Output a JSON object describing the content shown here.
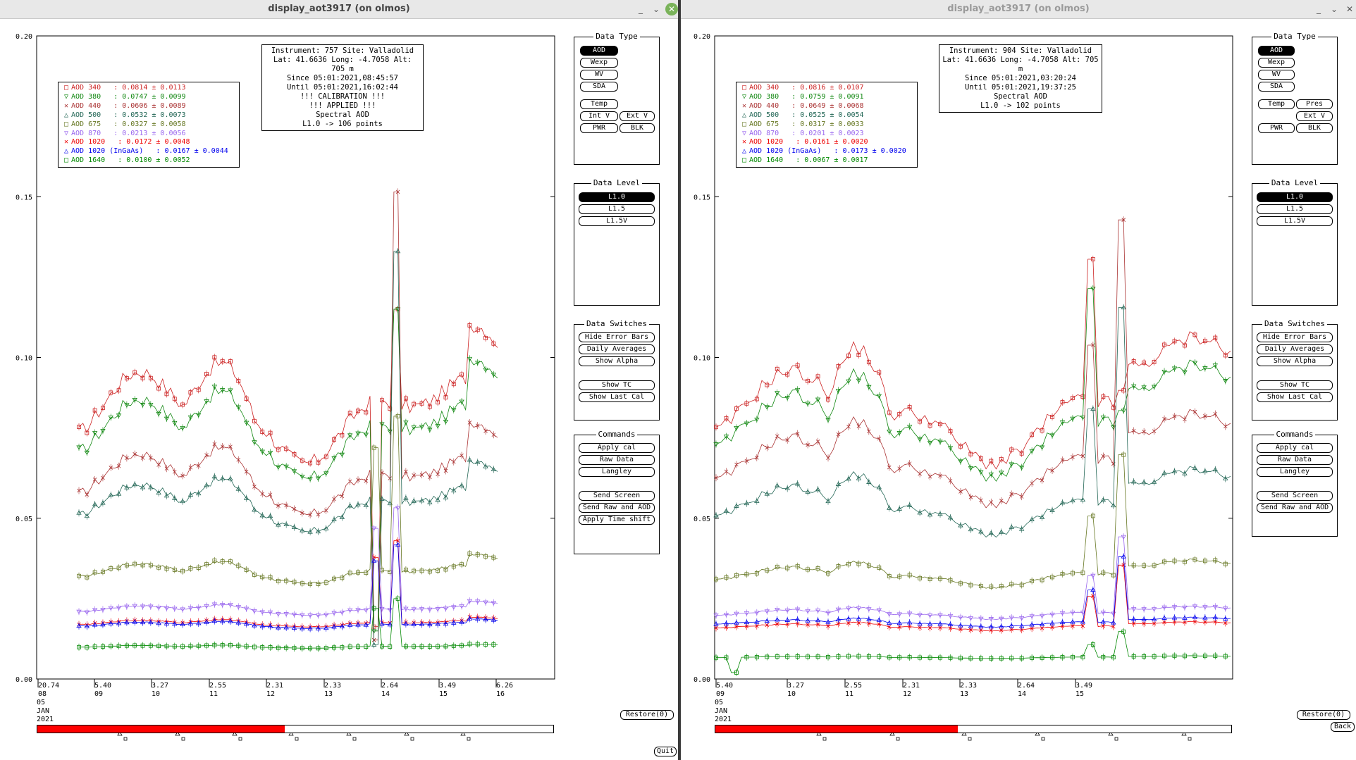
{
  "windows": [
    {
      "id": "left",
      "title": "display_aot3917 (on olmos)",
      "ylim": [
        0.0,
        0.2
      ],
      "yticks": [
        "0.00",
        "0.05",
        "0.10",
        "0.15",
        "0.20"
      ],
      "xticks": [
        {
          "v": "20.74",
          "d": "08"
        },
        {
          "v": "5.40",
          "d": "09"
        },
        {
          "v": "3.27",
          "d": "10"
        },
        {
          "v": "2.55",
          "d": "11"
        },
        {
          "v": "2.31",
          "d": "12"
        },
        {
          "v": "2.33",
          "d": "13"
        },
        {
          "v": "2.64",
          "d": "14"
        },
        {
          "v": "3.49",
          "d": "15"
        },
        {
          "v": "6.26",
          "d": "16"
        }
      ],
      "xdate": [
        "05",
        "JAN",
        "2021"
      ],
      "info": [
        "Instrument: 757 Site: Valladolid",
        "Lat: 41.6636 Long: -4.7058 Alt: 705 m",
        "Since 05:01:2021,08:45:57",
        "Until 05:01:2021,16:02:44",
        "!!! CALIBRATION !!!",
        "!!!   APPLIED   !!!",
        "Spectral AOD",
        "L1.0 -> 106 points"
      ],
      "legend": [
        {
          "icon": "□",
          "text": "AOD 340   : 0.0814 ± 0.0113",
          "color": "#cc2222"
        },
        {
          "icon": "▽",
          "text": "AOD 380   : 0.0747 ± 0.0099",
          "color": "#118811"
        },
        {
          "icon": "✕",
          "text": "AOD 440   : 0.0606 ± 0.0089",
          "color": "#aa3333"
        },
        {
          "icon": "△",
          "text": "AOD 500   : 0.0532 ± 0.0073",
          "color": "#226655"
        },
        {
          "icon": "□",
          "text": "AOD 675   : 0.0327 ± 0.0058",
          "color": "#667722"
        },
        {
          "icon": "▽",
          "text": "AOD 870   : 0.0213 ± 0.0056",
          "color": "#9966ee"
        },
        {
          "icon": "✕",
          "text": "AOD 1020   : 0.0172 ± 0.0048",
          "color": "#ee0000"
        },
        {
          "icon": "△",
          "text": "AOD 1020 (InGaAs)   : 0.0167 ± 0.0044",
          "color": "#0000ee"
        },
        {
          "icon": "□",
          "text": "AOD 1640   : 0.0100 ± 0.0052",
          "color": "#008800"
        }
      ],
      "progress": 0.48,
      "extra_pres": false,
      "apply_time_shift": true
    },
    {
      "id": "right",
      "title": "display_aot3917 (on olmos)",
      "ylim": [
        0.0,
        0.2
      ],
      "yticks": [
        "0.00",
        "0.05",
        "0.10",
        "0.15",
        "0.20"
      ],
      "xticks": [
        {
          "v": "5.40",
          "d": "09"
        },
        {
          "v": "3.27",
          "d": "10"
        },
        {
          "v": "2.55",
          "d": "11"
        },
        {
          "v": "2.31",
          "d": "12"
        },
        {
          "v": "2.33",
          "d": "13"
        },
        {
          "v": "2.64",
          "d": "14"
        },
        {
          "v": "3.49",
          "d": "15"
        }
      ],
      "xdate": [
        "05",
        "JAN",
        "2021"
      ],
      "info": [
        "Instrument: 904 Site: Valladolid",
        "Lat: 41.6636 Long: -4.7058 Alt: 705 m",
        "Since 05:01:2021,03:20:24",
        "Until 05:01:2021,19:37:25",
        "Spectral AOD",
        "L1.0 -> 102 points"
      ],
      "legend": [
        {
          "icon": "□",
          "text": "AOD 340   : 0.0816 ± 0.0107",
          "color": "#cc2222"
        },
        {
          "icon": "▽",
          "text": "AOD 380   : 0.0759 ± 0.0091",
          "color": "#118811"
        },
        {
          "icon": "✕",
          "text": "AOD 440   : 0.0649 ± 0.0068",
          "color": "#aa3333"
        },
        {
          "icon": "△",
          "text": "AOD 500   : 0.0525 ± 0.0054",
          "color": "#226655"
        },
        {
          "icon": "□",
          "text": "AOD 675   : 0.0317 ± 0.0033",
          "color": "#667722"
        },
        {
          "icon": "▽",
          "text": "AOD 870   : 0.0201 ± 0.0023",
          "color": "#9966ee"
        },
        {
          "icon": "✕",
          "text": "AOD 1020   : 0.0161 ± 0.0020",
          "color": "#ee0000"
        },
        {
          "icon": "△",
          "text": "AOD 1020 (InGaAs)   : 0.0173 ± 0.0020",
          "color": "#0000ee"
        },
        {
          "icon": "□",
          "text": "AOD 1640   : 0.0067 ± 0.0017",
          "color": "#008800"
        }
      ],
      "progress": 0.47,
      "extra_pres": true,
      "apply_time_shift": false
    }
  ],
  "panels": {
    "data_type": {
      "title": "Data Type",
      "aod": "AOD",
      "wexp": "Wexp",
      "wv": "WV",
      "sda": "SDA",
      "temp": "Temp",
      "pres": "Pres",
      "intv": "Int V",
      "extv": "Ext V",
      "pwr": "PWR",
      "blk": "BLK"
    },
    "data_level": {
      "title": "Data Level",
      "l10": "L1.0",
      "l15": "L1.5",
      "l15v": "L1.5V"
    },
    "data_switches": {
      "title": "Data Switches",
      "hide_error_bars": "Hide Error Bars",
      "daily_averages": "Daily Averages",
      "show_alpha": "Show Alpha",
      "show_tc": "Show TC",
      "show_last_cal": "Show Last Cal"
    },
    "commands": {
      "title": "Commands",
      "apply_cal": "Apply cal",
      "raw_data": "Raw Data",
      "langley": "Langley",
      "send_screen": "Send Screen",
      "send_raw_aod": "Send Raw and AOD",
      "apply_time_shift": "Apply Time shift"
    }
  },
  "buttons": {
    "restore": "Restore(0)",
    "back": "Back",
    "quit": "Quit"
  },
  "wm": {
    "minimize": "_",
    "restore": "⌄",
    "close": "✕"
  },
  "chart_data": [
    {
      "type": "scatter",
      "title": "Spectral AOD",
      "ylim": [
        0,
        0.2
      ],
      "x_ticks": [
        "20.74 08",
        "5.40 09",
        "3.27 10",
        "2.55 11",
        "2.31 12",
        "2.33 13",
        "2.64 14",
        "3.49 15",
        "6.26 16"
      ],
      "series_means": [
        {
          "name": "AOD 340",
          "mean": 0.0814,
          "std": 0.0113
        },
        {
          "name": "AOD 380",
          "mean": 0.0747,
          "std": 0.0099
        },
        {
          "name": "AOD 440",
          "mean": 0.0606,
          "std": 0.0089
        },
        {
          "name": "AOD 500",
          "mean": 0.0532,
          "std": 0.0073
        },
        {
          "name": "AOD 675",
          "mean": 0.0327,
          "std": 0.0058
        },
        {
          "name": "AOD 870",
          "mean": 0.0213,
          "std": 0.0056
        },
        {
          "name": "AOD 1020",
          "mean": 0.0172,
          "std": 0.0048
        },
        {
          "name": "AOD 1020 (InGaAs)",
          "mean": 0.0167,
          "std": 0.0044
        },
        {
          "name": "AOD 1640",
          "mean": 0.01,
          "std": 0.0052
        }
      ],
      "points": 106
    },
    {
      "type": "scatter",
      "title": "Spectral AOD",
      "ylim": [
        0,
        0.2
      ],
      "x_ticks": [
        "5.40 09",
        "3.27 10",
        "2.55 11",
        "2.31 12",
        "2.33 13",
        "2.64 14",
        "3.49 15"
      ],
      "series_means": [
        {
          "name": "AOD 340",
          "mean": 0.0816,
          "std": 0.0107
        },
        {
          "name": "AOD 380",
          "mean": 0.0759,
          "std": 0.0091
        },
        {
          "name": "AOD 440",
          "mean": 0.0649,
          "std": 0.0068
        },
        {
          "name": "AOD 500",
          "mean": 0.0525,
          "std": 0.0054
        },
        {
          "name": "AOD 675",
          "mean": 0.0317,
          "std": 0.0033
        },
        {
          "name": "AOD 870",
          "mean": 0.0201,
          "std": 0.0023
        },
        {
          "name": "AOD 1020",
          "mean": 0.0161,
          "std": 0.002
        },
        {
          "name": "AOD 1020 (InGaAs)",
          "mean": 0.0173,
          "std": 0.002
        },
        {
          "name": "AOD 1640",
          "mean": 0.0067,
          "std": 0.0017
        }
      ],
      "points": 102
    }
  ]
}
